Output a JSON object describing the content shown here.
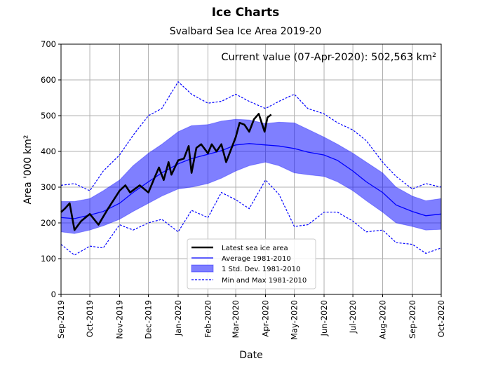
{
  "chart_data": {
    "type": "line",
    "title": "Ice Charts",
    "subtitle": "Svalbard Sea Ice Area 2019-20",
    "xlabel": "Date",
    "ylabel": "Area '000 km²",
    "annotation": "Current value (07-Apr-2020): 502,563 km²",
    "xlim": [
      "2019-09-01",
      "2020-10-01"
    ],
    "ylim": [
      0,
      700
    ],
    "yticks": [
      0,
      100,
      200,
      300,
      400,
      500,
      600,
      700
    ],
    "xticks": [
      {
        "date": "2019-09-01",
        "label": "Sep-2019"
      },
      {
        "date": "2019-10-01",
        "label": "Oct-2019"
      },
      {
        "date": "2019-11-01",
        "label": "Nov-2019"
      },
      {
        "date": "2019-12-01",
        "label": "Dec-2019"
      },
      {
        "date": "2020-01-01",
        "label": "Jan-2020"
      },
      {
        "date": "2020-02-01",
        "label": "Feb-2020"
      },
      {
        "date": "2020-03-01",
        "label": "Mar-2020"
      },
      {
        "date": "2020-04-01",
        "label": "Apr-2020"
      },
      {
        "date": "2020-05-01",
        "label": "May-2020"
      },
      {
        "date": "2020-06-01",
        "label": "Jun-2020"
      },
      {
        "date": "2020-07-01",
        "label": "Jul-2020"
      },
      {
        "date": "2020-08-01",
        "label": "Aug-2020"
      },
      {
        "date": "2020-09-01",
        "label": "Sep-2020"
      },
      {
        "date": "2020-10-01",
        "label": "Oct-2020"
      }
    ],
    "grid": true,
    "legend_placement": "lower-center",
    "colors": {
      "latest": "#000000",
      "average": "#0000ff",
      "std": "#7f7fff",
      "minmax": "#0000ff"
    },
    "legend": [
      "Latest sea ice area",
      "Average 1981-2010",
      "1 Std. Dev. 1981-2010",
      "Min and Max 1981-2010"
    ],
    "climatology_dates": [
      "2019-09-01",
      "2019-09-15",
      "2019-10-01",
      "2019-10-15",
      "2019-11-01",
      "2019-11-15",
      "2019-12-01",
      "2019-12-15",
      "2020-01-01",
      "2020-01-15",
      "2020-02-01",
      "2020-02-15",
      "2020-03-01",
      "2020-03-15",
      "2020-04-01",
      "2020-04-15",
      "2020-05-01",
      "2020-05-15",
      "2020-06-01",
      "2020-06-15",
      "2020-07-01",
      "2020-07-15",
      "2020-08-01",
      "2020-08-15",
      "2020-09-01",
      "2020-09-15",
      "2020-10-01"
    ],
    "average": [
      215,
      212,
      222,
      232,
      255,
      285,
      315,
      340,
      365,
      380,
      392,
      402,
      418,
      422,
      418,
      415,
      408,
      398,
      390,
      375,
      345,
      315,
      285,
      250,
      232,
      220,
      225
    ],
    "std_upper": [
      260,
      260,
      268,
      290,
      320,
      360,
      395,
      420,
      455,
      472,
      475,
      485,
      490,
      488,
      478,
      482,
      480,
      462,
      440,
      420,
      395,
      370,
      340,
      300,
      275,
      262,
      268
    ],
    "std_lower": [
      175,
      170,
      180,
      192,
      210,
      232,
      255,
      275,
      295,
      300,
      310,
      325,
      345,
      360,
      370,
      360,
      340,
      335,
      330,
      315,
      290,
      262,
      230,
      200,
      190,
      180,
      182
    ],
    "max": [
      305,
      310,
      290,
      345,
      390,
      445,
      500,
      520,
      595,
      560,
      535,
      540,
      560,
      540,
      520,
      540,
      560,
      520,
      505,
      480,
      460,
      430,
      370,
      330,
      295,
      310,
      300
    ],
    "min": [
      140,
      110,
      135,
      130,
      195,
      180,
      200,
      210,
      175,
      235,
      215,
      285,
      265,
      240,
      320,
      280,
      190,
      195,
      230,
      230,
      205,
      175,
      180,
      145,
      140,
      115,
      130
    ],
    "latest_dates": [
      "2019-09-01",
      "2019-09-05",
      "2019-09-10",
      "2019-09-15",
      "2019-09-22",
      "2019-10-01",
      "2019-10-10",
      "2019-10-20",
      "2019-11-01",
      "2019-11-07",
      "2019-11-12",
      "2019-11-22",
      "2019-12-01",
      "2019-12-08",
      "2019-12-12",
      "2019-12-17",
      "2019-12-22",
      "2019-12-25",
      "2020-01-01",
      "2020-01-07",
      "2020-01-12",
      "2020-01-15",
      "2020-01-20",
      "2020-01-25",
      "2020-02-01",
      "2020-02-05",
      "2020-02-10",
      "2020-02-15",
      "2020-02-20",
      "2020-02-25",
      "2020-03-01",
      "2020-03-05",
      "2020-03-10",
      "2020-03-15",
      "2020-03-20",
      "2020-03-25",
      "2020-03-31",
      "2020-04-03",
      "2020-04-07"
    ],
    "latest": [
      230,
      240,
      255,
      180,
      205,
      225,
      195,
      240,
      290,
      305,
      285,
      305,
      285,
      330,
      355,
      320,
      370,
      335,
      375,
      380,
      415,
      340,
      410,
      420,
      395,
      420,
      400,
      420,
      370,
      405,
      440,
      480,
      475,
      455,
      490,
      505,
      455,
      495,
      503
    ]
  }
}
